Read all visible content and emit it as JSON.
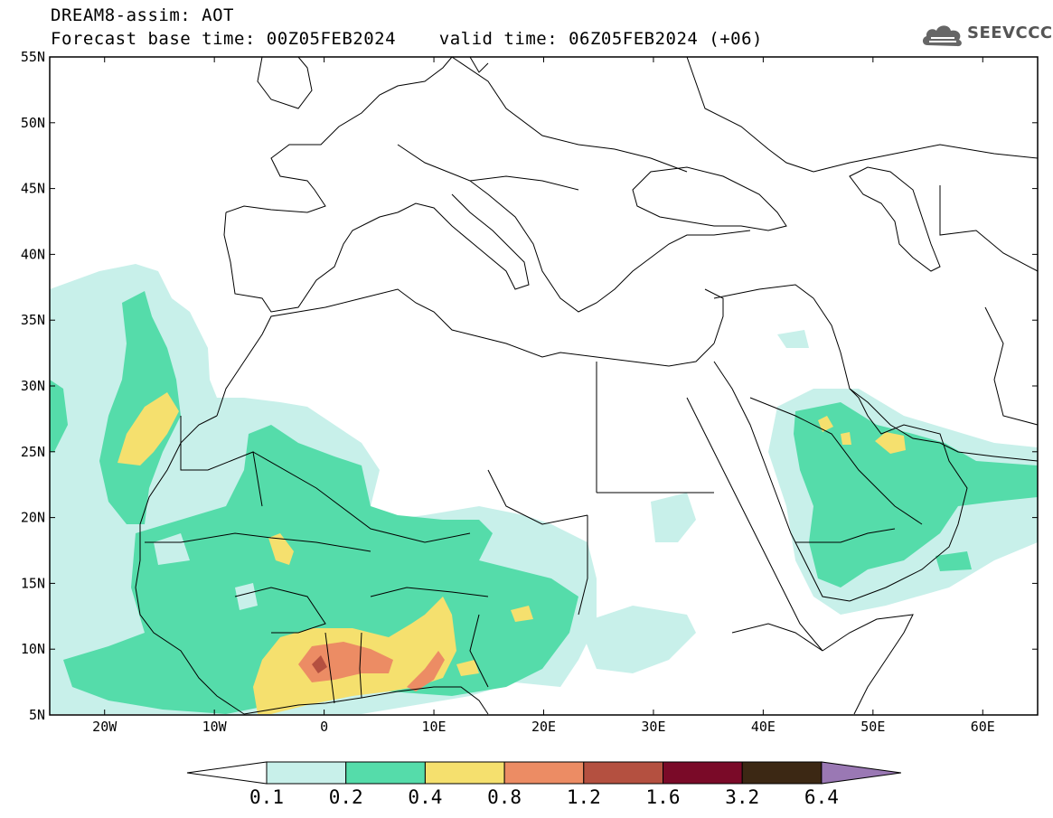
{
  "header": {
    "title_line_1": "DREAM8-assim: AOT",
    "title_line_2": "Forecast base time: 00Z05FEB2024    valid time: 06Z05FEB2024 (+06)"
  },
  "logo": {
    "text": "SEEVCCC",
    "icon": "cloud-logo-icon"
  },
  "map": {
    "lon_range": [
      -25,
      65
    ],
    "lat_range": [
      5,
      55
    ],
    "lat_ticks": [
      {
        "value": 55,
        "label": "55N"
      },
      {
        "value": 50,
        "label": "50N"
      },
      {
        "value": 45,
        "label": "45N"
      },
      {
        "value": 40,
        "label": "40N"
      },
      {
        "value": 35,
        "label": "35N"
      },
      {
        "value": 30,
        "label": "30N"
      },
      {
        "value": 25,
        "label": "25N"
      },
      {
        "value": 20,
        "label": "20N"
      },
      {
        "value": 15,
        "label": "15N"
      },
      {
        "value": 10,
        "label": "10N"
      },
      {
        "value": 5,
        "label": "5N"
      }
    ],
    "lon_ticks": [
      {
        "value": -20,
        "label": "20W"
      },
      {
        "value": -10,
        "label": "10W"
      },
      {
        "value": 0,
        "label": "0"
      },
      {
        "value": 10,
        "label": "10E"
      },
      {
        "value": 20,
        "label": "20E"
      },
      {
        "value": 30,
        "label": "30E"
      },
      {
        "value": 40,
        "label": "40E"
      },
      {
        "value": 50,
        "label": "50E"
      },
      {
        "value": 60,
        "label": "60E"
      }
    ]
  },
  "colorbar": {
    "levels": [
      "0.1",
      "0.2",
      "0.4",
      "0.8",
      "1.2",
      "1.6",
      "3.2",
      "6.4"
    ],
    "colors": [
      "#ffffff",
      "#c8f0ea",
      "#55dcaa",
      "#f5e06e",
      "#ec8c64",
      "#b45040",
      "#7a0a28",
      "#3c2814",
      "#9a78b4"
    ]
  },
  "aot_fields": [
    {
      "level": "0.1-0.2",
      "color": "#c8f0ea",
      "regions": [
        "Eastern Atlantic off Morocco",
        "West Africa / Sahel",
        "Sudan / Chad",
        "Arabian Peninsula",
        "Arabian Sea"
      ]
    },
    {
      "level": "0.2-0.4",
      "color": "#55dcaa",
      "regions": [
        "Canary Islands",
        "Mauritania / Mali",
        "Sahel belt",
        "Persian Gulf / Arabian Peninsula"
      ]
    },
    {
      "level": "0.4-0.8",
      "color": "#f5e06e",
      "regions": [
        "Western Sahara coast",
        "Gulf of Guinea / Nigeria",
        "Persian Gulf"
      ]
    },
    {
      "level": "0.8-1.2",
      "color": "#ec8c64",
      "regions": [
        "Benin / Nigeria"
      ]
    },
    {
      "level": "1.2-1.6",
      "color": "#b45040",
      "regions": [
        "Ghana / Togo"
      ]
    }
  ]
}
